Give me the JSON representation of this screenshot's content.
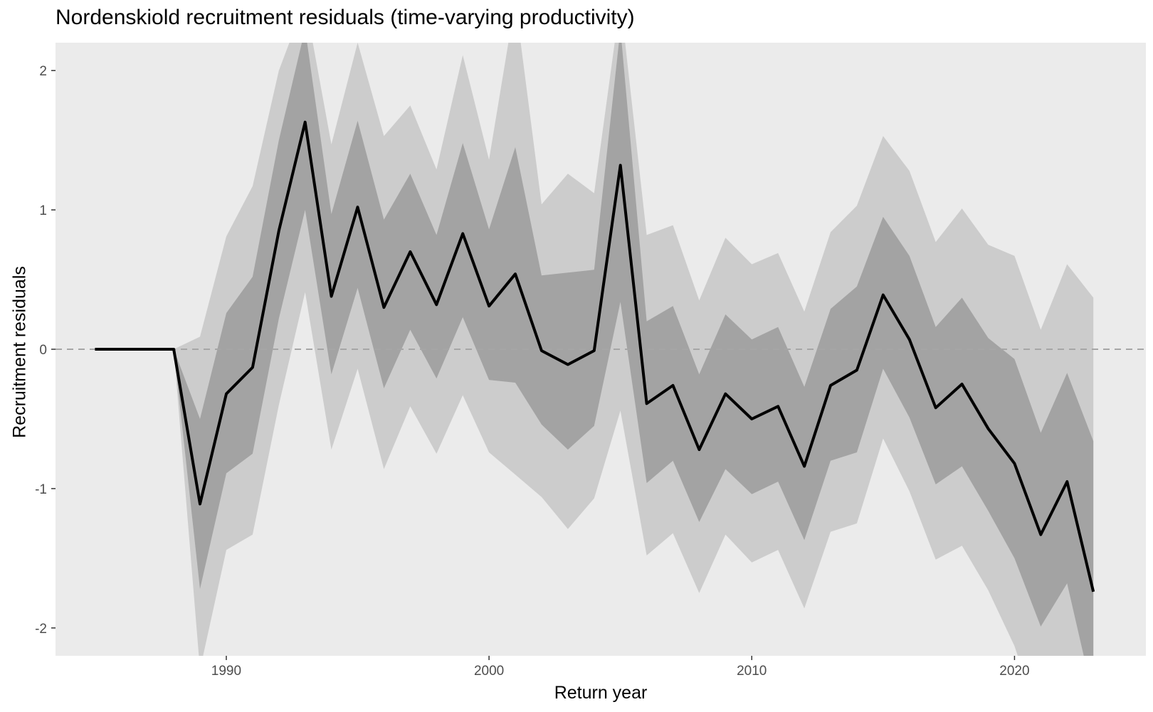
{
  "chart_data": {
    "type": "area",
    "title": "Nordenskiold recruitment residuals (time-varying productivity)",
    "xlabel": "Return year",
    "ylabel": "Recruitment residuals",
    "xlim": [
      1983.5,
      2025.0
    ],
    "ylim": [
      -2.2,
      2.2
    ],
    "x_ticks": [
      1990,
      2000,
      2010,
      2020
    ],
    "y_ticks": [
      -2,
      -1,
      0,
      1,
      2
    ],
    "reference_line": 0,
    "grid": false,
    "x": [
      1985,
      1986,
      1987,
      1988,
      1989,
      1990,
      1991,
      1992,
      1993,
      1994,
      1995,
      1996,
      1997,
      1998,
      1999,
      2000,
      2001,
      2002,
      2003,
      2004,
      2005,
      2006,
      2007,
      2008,
      2009,
      2010,
      2011,
      2012,
      2013,
      2014,
      2015,
      2016,
      2017,
      2018,
      2019,
      2020,
      2021,
      2022,
      2023
    ],
    "series": [
      {
        "values": [
          0,
          0,
          0,
          0,
          -1.11,
          -0.32,
          -0.13,
          0.85,
          1.63,
          0.38,
          1.02,
          0.3,
          0.7,
          0.32,
          0.83,
          0.31,
          0.54,
          -0.01,
          -0.11,
          -0.01,
          1.32,
          -0.39,
          -0.26,
          -0.72,
          -0.32,
          -0.5,
          -0.41,
          -0.84,
          -0.26,
          -0.15,
          0.39,
          0.07,
          -0.42,
          -0.25,
          -0.57,
          -0.82,
          -1.33,
          -0.95,
          -1.74
        ]
      }
    ],
    "bands": [
      {
        "level": "outer",
        "color": "#cccccc",
        "lower": [
          0,
          0,
          0,
          0,
          -2.3,
          -1.44,
          -1.33,
          -0.4,
          0.41,
          -0.72,
          -0.14,
          -0.86,
          -0.41,
          -0.75,
          -0.33,
          -0.74,
          -0.9,
          -1.06,
          -1.29,
          -1.07,
          -0.44,
          -1.48,
          -1.32,
          -1.75,
          -1.33,
          -1.53,
          -1.44,
          -1.86,
          -1.31,
          -1.25,
          -0.64,
          -1.02,
          -1.51,
          -1.41,
          -1.73,
          -2.13,
          -2.7,
          -2.7,
          -2.7
        ],
        "upper": [
          0,
          0,
          0,
          0,
          0.09,
          0.81,
          1.17,
          2.0,
          2.5,
          1.47,
          2.2,
          1.53,
          1.75,
          1.29,
          2.11,
          1.36,
          2.5,
          1.04,
          1.26,
          1.12,
          2.5,
          0.82,
          0.89,
          0.35,
          0.8,
          0.61,
          0.69,
          0.27,
          0.84,
          1.03,
          1.53,
          1.28,
          0.77,
          1.01,
          0.75,
          0.67,
          0.14,
          0.61,
          0.37
        ]
      },
      {
        "level": "inner",
        "color": "#a3a3a3",
        "lower": [
          0,
          0,
          0,
          0,
          -1.72,
          -0.89,
          -0.75,
          0.22,
          1.0,
          -0.18,
          0.44,
          -0.28,
          0.14,
          -0.21,
          0.23,
          -0.22,
          -0.24,
          -0.54,
          -0.72,
          -0.55,
          0.34,
          -0.96,
          -0.8,
          -1.24,
          -0.86,
          -1.04,
          -0.95,
          -1.37,
          -0.8,
          -0.74,
          -0.14,
          -0.49,
          -0.97,
          -0.84,
          -1.16,
          -1.5,
          -1.99,
          -1.68,
          -2.5
        ],
        "upper": [
          0,
          0,
          0,
          0,
          -0.5,
          0.26,
          0.52,
          1.5,
          2.3,
          0.97,
          1.64,
          0.93,
          1.26,
          0.82,
          1.48,
          0.86,
          1.45,
          0.53,
          0.55,
          0.57,
          2.3,
          0.2,
          0.31,
          -0.18,
          0.25,
          0.07,
          0.16,
          -0.27,
          0.29,
          0.45,
          0.95,
          0.67,
          0.16,
          0.37,
          0.08,
          -0.07,
          -0.6,
          -0.17,
          -0.66
        ]
      }
    ]
  }
}
